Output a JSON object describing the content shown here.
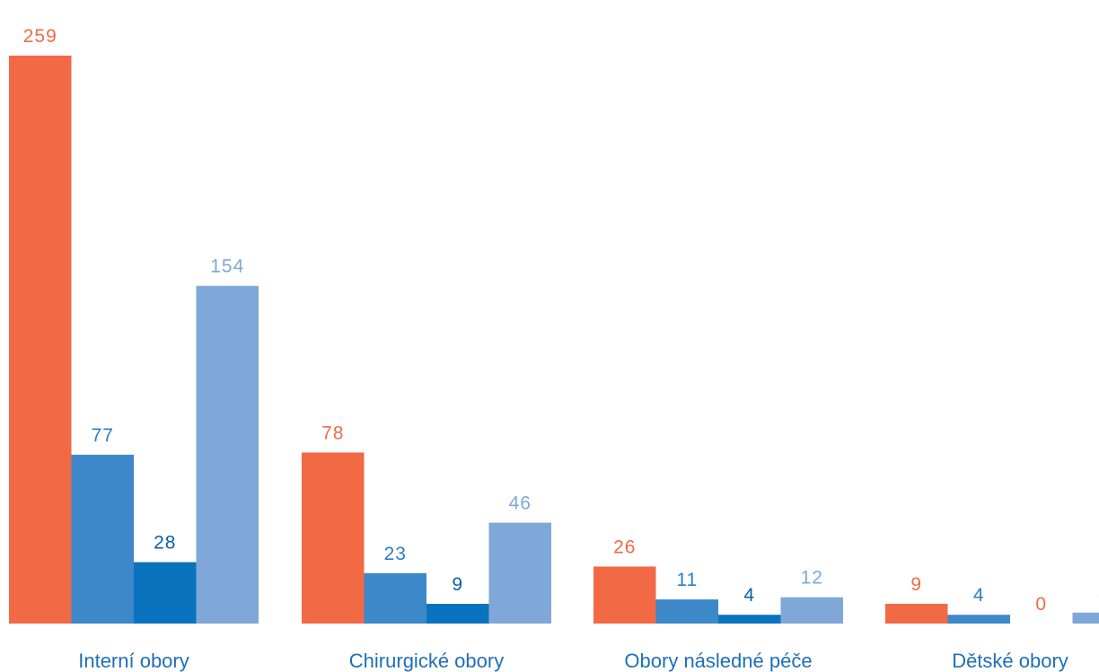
{
  "chart_data": {
    "type": "bar",
    "categories": [
      "Interní obory",
      "Chirurgické obory",
      "Obory následné péče",
      "Dětské obory"
    ],
    "series": [
      {
        "values": [
          259,
          78,
          26,
          9
        ],
        "color": "#f26a45"
      },
      {
        "values": [
          77,
          23,
          11,
          4
        ],
        "color": "#3c88c9"
      },
      {
        "values": [
          28,
          9,
          4,
          0
        ],
        "color": "#0a73bd"
      },
      {
        "values": [
          154,
          46,
          12,
          5
        ],
        "color": "#7fa8d9"
      }
    ],
    "value_label_colors": [
      "#f26a45",
      "#2c7fc3",
      "#0a5fa8",
      "#7fa8d9"
    ],
    "zero_label_color": "#f26a45",
    "category_label_color": "#1f6fb8",
    "ylim": [
      0,
      259
    ],
    "grid": false,
    "legend": "none"
  }
}
